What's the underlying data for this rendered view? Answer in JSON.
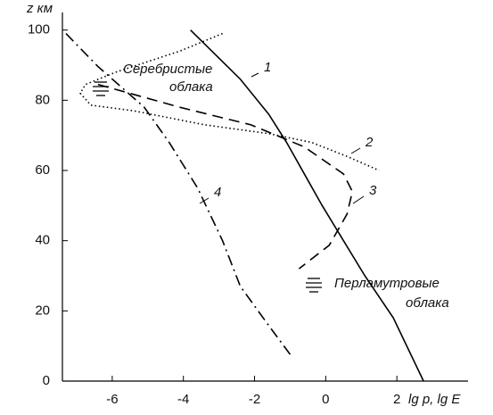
{
  "chart_data": {
    "type": "line",
    "y_label": "z км",
    "x_label": "lg p,  lg E",
    "annotations": [
      "Серебристые",
      "облака",
      "Перламутровые",
      "облака"
    ],
    "xlim": [
      -7.4,
      4
    ],
    "xticks": [
      -6,
      -4,
      -2,
      0,
      2
    ],
    "ylim": [
      0,
      105
    ],
    "yticks": [
      0,
      20,
      40,
      60,
      80,
      100
    ],
    "series": [
      {
        "name": "1",
        "color": "#000000",
        "style": "solid",
        "x": [
          -3.8,
          -2.4,
          -1.6,
          -1.1,
          -0.6,
          -0.1,
          0.5,
          1.1,
          1.9,
          2.75
        ],
        "values": [
          100,
          86,
          76,
          68,
          59,
          50,
          40,
          30,
          18,
          0
        ]
      },
      {
        "name": "2",
        "color": "#000000",
        "style": "dotted",
        "x": [
          -2.9,
          -4.1,
          -5.9,
          -6.75,
          -6.9,
          -6.6,
          -5.4,
          -3.4,
          -1.6,
          -0.4,
          0.6,
          1.5
        ],
        "values": [
          99,
          94,
          88,
          84.5,
          82,
          78.6,
          77,
          73,
          70.5,
          68,
          64,
          60
        ]
      },
      {
        "name": "3",
        "color": "#000000",
        "style": "dashed",
        "x": [
          -6.4,
          -4.1,
          -2.1,
          -0.6,
          0.5,
          0.75,
          0.6,
          0.1,
          -0.75
        ],
        "values": [
          84.5,
          78,
          73,
          66.7,
          59,
          54,
          47.6,
          38.7,
          32
        ]
      },
      {
        "name": "4",
        "color": "#000000",
        "style": "dashdot",
        "x": [
          -7.3,
          -6.4,
          -5.1,
          -4.4,
          -3.6,
          -2.9,
          -2.4,
          -1.6,
          -1.0
        ],
        "values": [
          99,
          89.6,
          78,
          68,
          55,
          40,
          27,
          15.8,
          7.6
        ]
      }
    ]
  }
}
